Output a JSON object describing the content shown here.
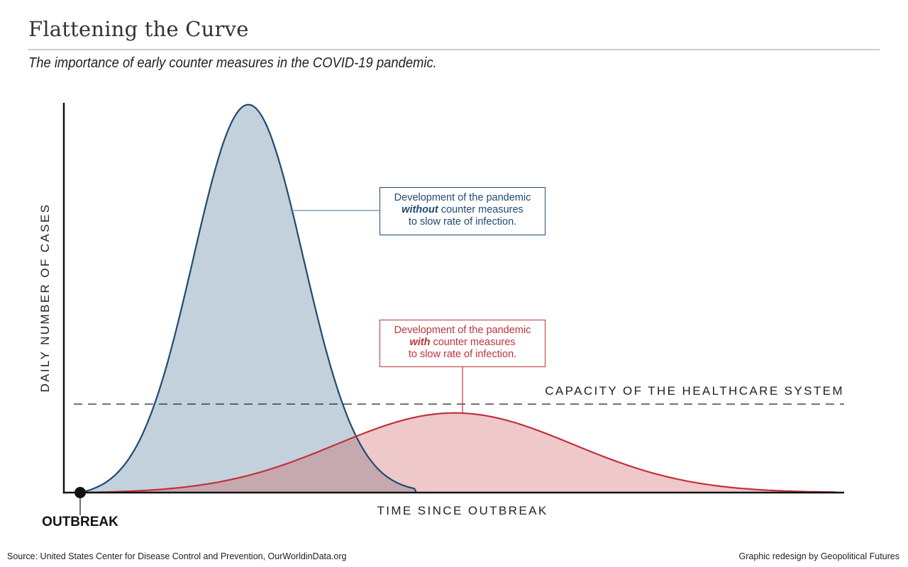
{
  "header": {
    "title": "Flattening the Curve",
    "subtitle": "The importance of early counter measures in the COVID-19 pandemic."
  },
  "chart_data": {
    "type": "area",
    "title": "Flattening the Curve",
    "xlabel": "TIME SINCE OUTBREAK",
    "ylabel": "DAILY NUMBER OF CASES",
    "xlim": [
      0,
      100
    ],
    "ylim": [
      0,
      100
    ],
    "grid": false,
    "series": [
      {
        "name": "without counter measures",
        "shape": "gaussian",
        "peak_x": 22,
        "peak_y": 100,
        "sigma": 7.2,
        "end_x": 44,
        "color": "#1f4a72",
        "fill": "#c3d1dc"
      },
      {
        "name": "with counter measures",
        "shape": "gaussian",
        "peak_x": 49,
        "peak_y": 20.5,
        "sigma": 15.5,
        "end_x": 99,
        "color": "#c0323a",
        "fill": "#efc8ca"
      }
    ],
    "overlap_fill": "#c6a9af",
    "reference_line": {
      "label": "CAPACITY OF THE HEALTHCARE SYSTEM",
      "y": 22.7,
      "style": "dashed"
    },
    "origin_marker": {
      "label": "OUTBREAK",
      "x": 0
    },
    "annotations": [
      {
        "series": "without counter measures",
        "line1": "Development of the pandemic",
        "emph": "without",
        "line2_rest": " counter measures",
        "line3": "to slow rate of infection."
      },
      {
        "series": "with counter measures",
        "line1": "Development of the pandemic",
        "emph": "with",
        "line2_rest": " counter measures",
        "line3": "to slow rate of infection."
      }
    ]
  },
  "footer": {
    "source": "Source: United States Center for Disease Control and Prevention, OurWorldinData.org",
    "credit": "Graphic redesign by Geopolitical Futures"
  }
}
